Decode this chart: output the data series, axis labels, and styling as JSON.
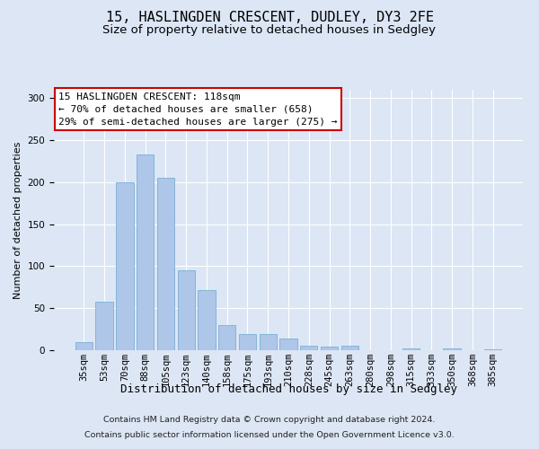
{
  "title": "15, HASLINGDEN CRESCENT, DUDLEY, DY3 2FE",
  "subtitle": "Size of property relative to detached houses in Sedgley",
  "xlabel": "Distribution of detached houses by size in Sedgley",
  "ylabel": "Number of detached properties",
  "categories": [
    "35sqm",
    "53sqm",
    "70sqm",
    "88sqm",
    "105sqm",
    "123sqm",
    "140sqm",
    "158sqm",
    "175sqm",
    "193sqm",
    "210sqm",
    "228sqm",
    "245sqm",
    "263sqm",
    "280sqm",
    "298sqm",
    "315sqm",
    "333sqm",
    "350sqm",
    "368sqm",
    "385sqm"
  ],
  "values": [
    10,
    58,
    200,
    233,
    205,
    95,
    72,
    30,
    19,
    19,
    14,
    5,
    4,
    5,
    0,
    0,
    2,
    0,
    2,
    0,
    1
  ],
  "bar_color": "#aec6e8",
  "bar_edge_color": "#7bafd4",
  "annotation_text": "15 HASLINGDEN CRESCENT: 118sqm\n← 70% of detached houses are smaller (658)\n29% of semi-detached houses are larger (275) →",
  "annotation_box_color": "#ffffff",
  "annotation_box_edge": "#cc0000",
  "footer_line1": "Contains HM Land Registry data © Crown copyright and database right 2024.",
  "footer_line2": "Contains public sector information licensed under the Open Government Licence v3.0.",
  "bg_color": "#dce6f5",
  "fig_bg_color": "#dce6f5",
  "ylim": [
    0,
    310
  ],
  "title_fontsize": 11,
  "subtitle_fontsize": 9.5,
  "xlabel_fontsize": 9,
  "ylabel_fontsize": 8,
  "tick_fontsize": 7.5,
  "footer_fontsize": 6.8,
  "annot_fontsize": 8
}
